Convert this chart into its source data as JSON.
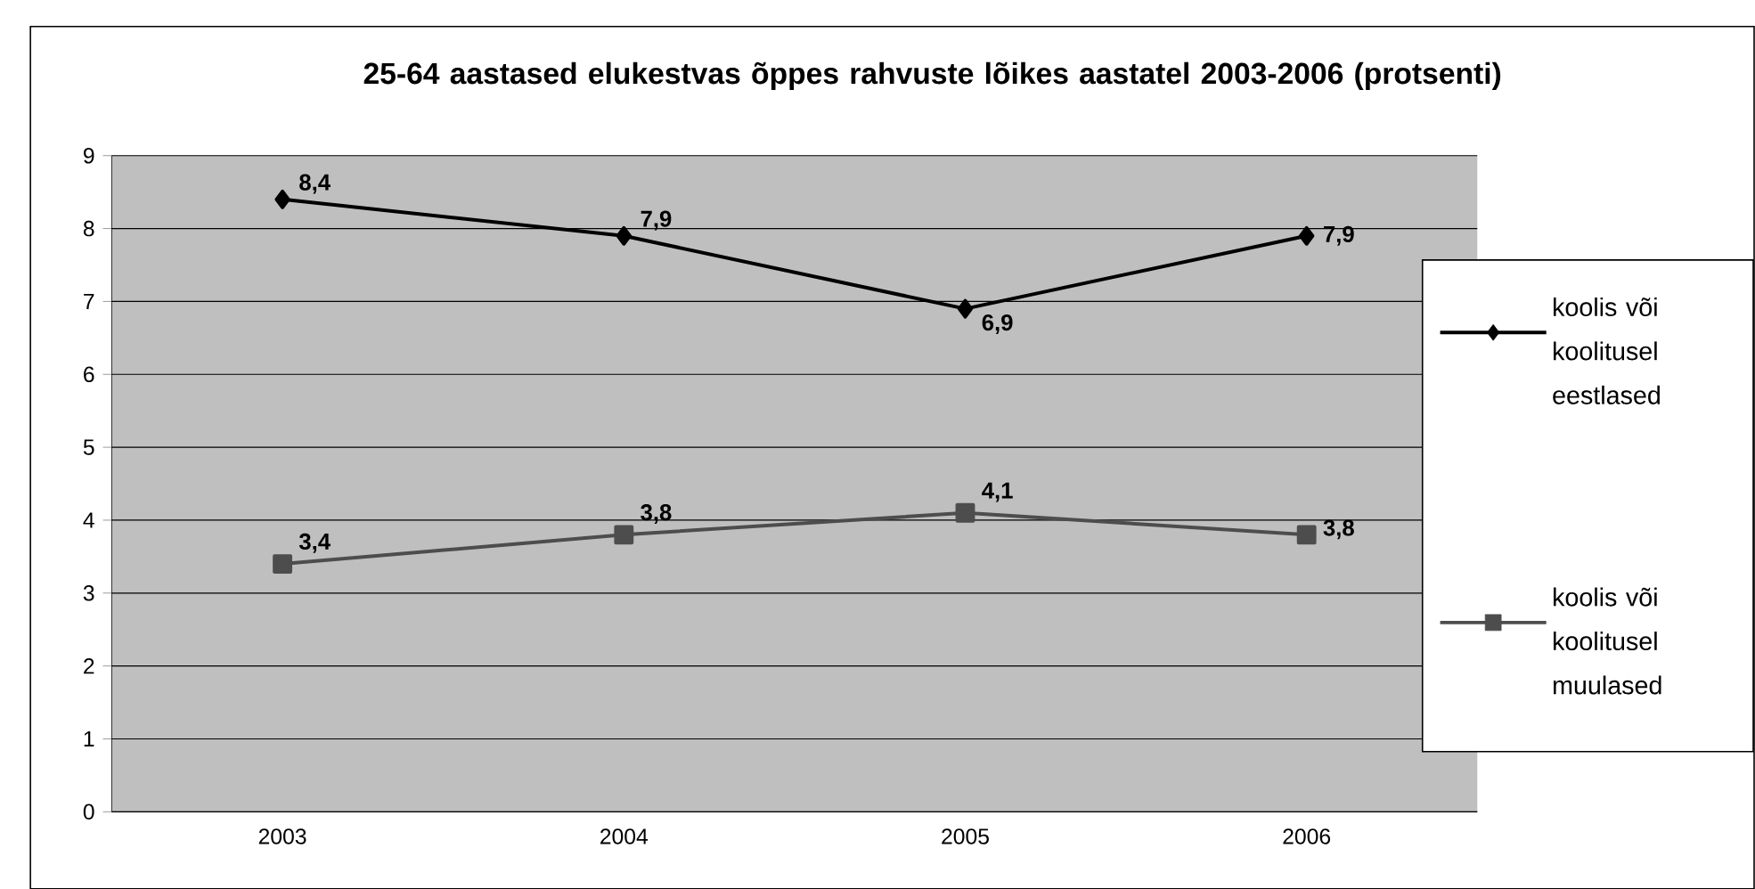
{
  "chart_data": {
    "type": "line",
    "title": "25-64 aastased elukestvas õppes rahvuste lõikes aastatel 2003-2006 (protsenti)",
    "categories": [
      "2003",
      "2004",
      "2005",
      "2006"
    ],
    "series": [
      {
        "name": "koolis või koolitusel eestlased",
        "color": "#000000",
        "marker": "diamond",
        "values": [
          8.4,
          7.9,
          6.9,
          7.9
        ],
        "value_labels": [
          "8,4",
          "7,9",
          "6,9",
          "7,9"
        ]
      },
      {
        "name": "koolis või koolitusel muulased",
        "color": "#4d4d4d",
        "marker": "square",
        "values": [
          3.4,
          3.8,
          4.1,
          3.8
        ],
        "value_labels": [
          "3,4",
          "3,8",
          "4,1",
          "3,8"
        ]
      }
    ],
    "ylim": [
      0,
      9
    ],
    "yticks": [
      0,
      1,
      2,
      3,
      4,
      5,
      6,
      7,
      8,
      9
    ],
    "grid": "y",
    "legend": "right",
    "line_style": "solid"
  }
}
